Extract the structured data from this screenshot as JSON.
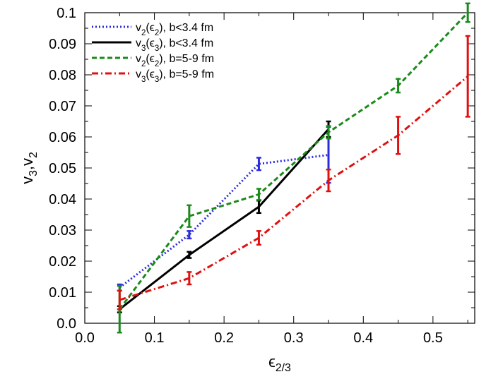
{
  "chart_data": {
    "type": "line",
    "xlabel_parts": [
      {
        "text": "ϵ",
        "sub": false
      },
      {
        "text": "2/3",
        "sub": true
      }
    ],
    "ylabel_parts": [
      {
        "text": "v",
        "sub": false
      },
      {
        "text": "3",
        "sub": true
      },
      {
        "text": ",v",
        "sub": false
      },
      {
        "text": "2",
        "sub": true
      }
    ],
    "xlim": [
      0.0,
      0.56
    ],
    "ylim": [
      0.0,
      0.1
    ],
    "x_ticks": [
      0.0,
      0.1,
      0.2,
      0.3,
      0.4,
      0.5
    ],
    "x_tick_labels": [
      "0.0",
      "0.1",
      "0.2",
      "0.3",
      "0.4",
      "0.5"
    ],
    "y_ticks": [
      0.0,
      0.01,
      0.02,
      0.03,
      0.04,
      0.05,
      0.06,
      0.07,
      0.08,
      0.09,
      0.1
    ],
    "y_tick_labels": [
      "0.0",
      "0.01",
      "0.02",
      "0.03",
      "0.04",
      "0.05",
      "0.06",
      "0.07",
      "0.08",
      "0.09",
      "0.1"
    ],
    "grid": false,
    "legend_position": "top-left",
    "series": [
      {
        "label_parts": [
          {
            "text": "v",
            "sub": false
          },
          {
            "text": "2",
            "sub": true
          },
          {
            "text": "(ϵ",
            "sub": false
          },
          {
            "text": "2",
            "sub": true
          },
          {
            "text": "), b<3.4 fm",
            "sub": false
          }
        ],
        "color": "#2b2bdc",
        "dash": "dotted",
        "x": [
          0.05,
          0.15,
          0.25,
          0.35
        ],
        "y": [
          0.0115,
          0.0285,
          0.0513,
          0.0542
        ],
        "err": [
          0.001,
          0.0012,
          0.002,
          0.009
        ]
      },
      {
        "label_parts": [
          {
            "text": "v",
            "sub": false
          },
          {
            "text": "3",
            "sub": true
          },
          {
            "text": "(ϵ",
            "sub": false
          },
          {
            "text": "3",
            "sub": true
          },
          {
            "text": "), b<3.4 fm",
            "sub": false
          }
        ],
        "color": "#000000",
        "dash": "solid",
        "x": [
          0.05,
          0.15,
          0.25,
          0.35
        ],
        "y": [
          0.0045,
          0.022,
          0.0375,
          0.0625
        ],
        "err": [
          0.001,
          0.001,
          0.002,
          0.0025
        ]
      },
      {
        "label_parts": [
          {
            "text": "v",
            "sub": false
          },
          {
            "text": "2",
            "sub": true
          },
          {
            "text": "(ϵ",
            "sub": false
          },
          {
            "text": "2",
            "sub": true
          },
          {
            "text": "), b=5-9 fm",
            "sub": false
          }
        ],
        "color": "#1a8a1a",
        "dash": "dashed",
        "x": [
          0.05,
          0.15,
          0.25,
          0.35,
          0.45,
          0.55
        ],
        "y": [
          0.0045,
          0.0345,
          0.0415,
          0.0615,
          0.0765,
          0.1
        ],
        "err": [
          0.0075,
          0.0035,
          0.0018,
          0.002,
          0.0022,
          0.003
        ]
      },
      {
        "label_parts": [
          {
            "text": "v",
            "sub": false
          },
          {
            "text": "3",
            "sub": true
          },
          {
            "text": "(ϵ",
            "sub": false
          },
          {
            "text": "3",
            "sub": true
          },
          {
            "text": "), b=5-9 fm",
            "sub": false
          }
        ],
        "color": "#e01010",
        "dash": "dashdot",
        "x": [
          0.05,
          0.15,
          0.25,
          0.35,
          0.45,
          0.55
        ],
        "y": [
          0.0075,
          0.0145,
          0.0275,
          0.046,
          0.0605,
          0.0795
        ],
        "err": [
          0.003,
          0.002,
          0.0022,
          0.0035,
          0.006,
          0.013
        ]
      }
    ]
  }
}
